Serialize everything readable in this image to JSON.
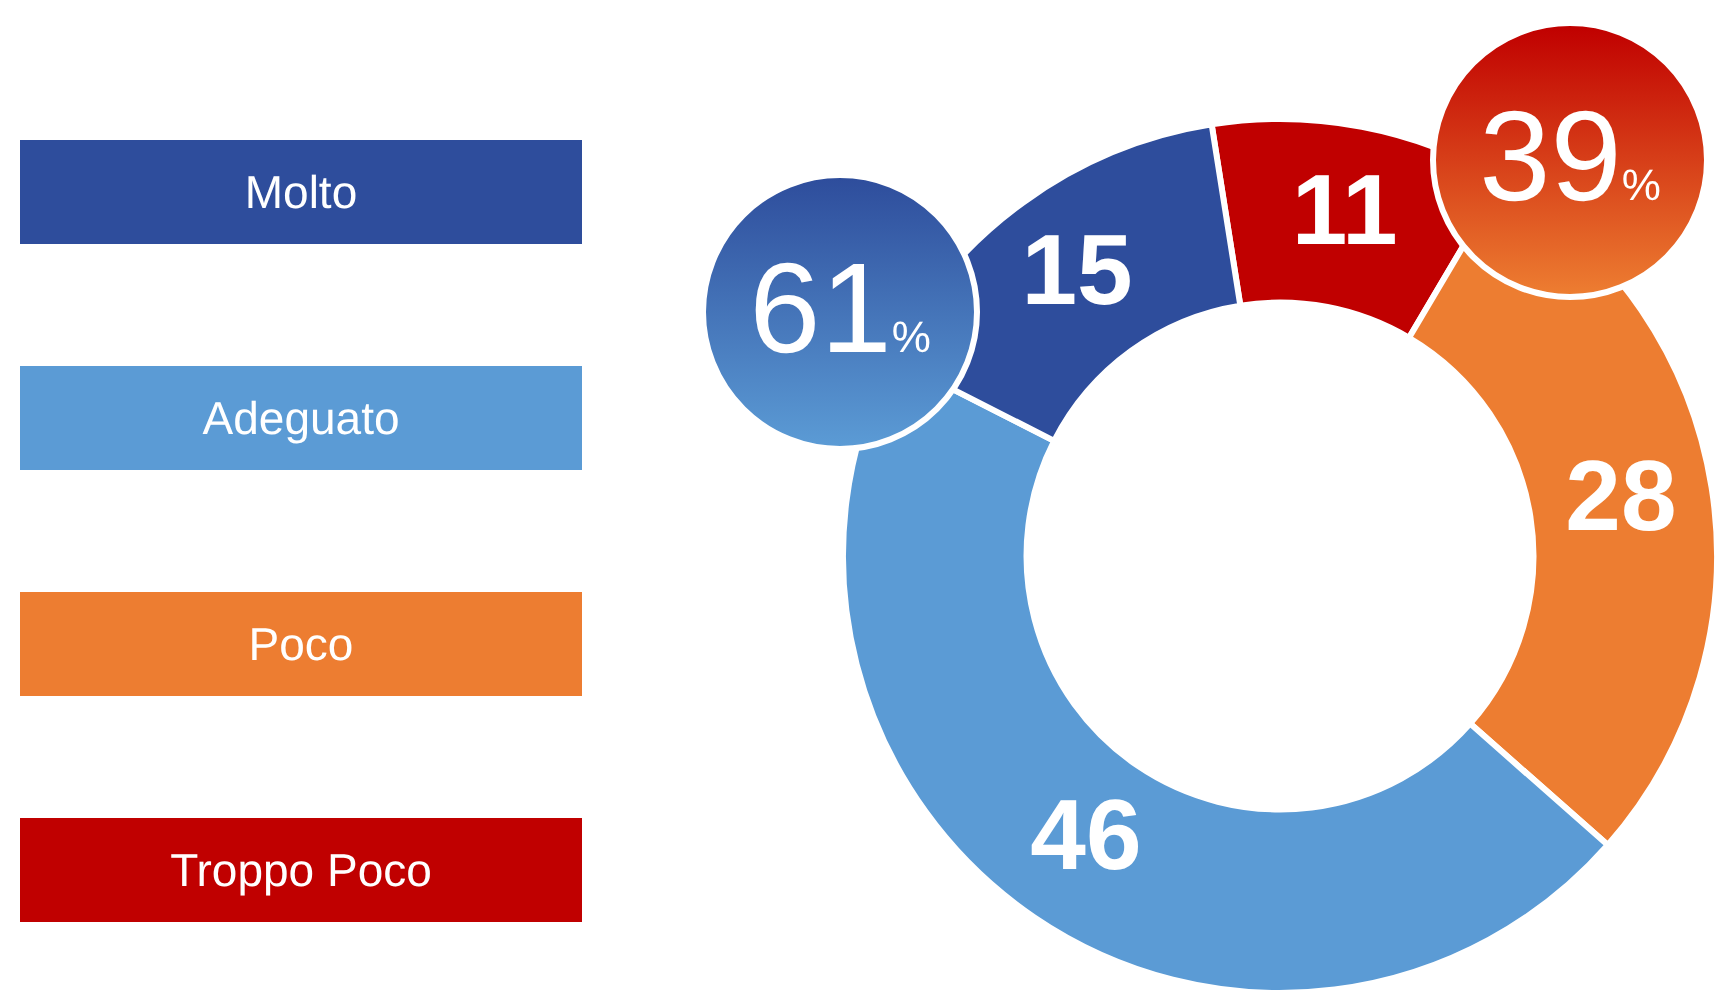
{
  "chart_data": {
    "type": "donut",
    "categories": [
      "Molto",
      "Adeguato",
      "Poco",
      "Troppo Poco"
    ],
    "values": [
      15,
      46,
      28,
      11
    ],
    "colors": [
      "#2e4d9c",
      "#5b9bd5",
      "#ed7d31",
      "#c00000"
    ],
    "data_labels": true,
    "legend": "left",
    "annotations": [
      "61%",
      "39%"
    ]
  }
}
